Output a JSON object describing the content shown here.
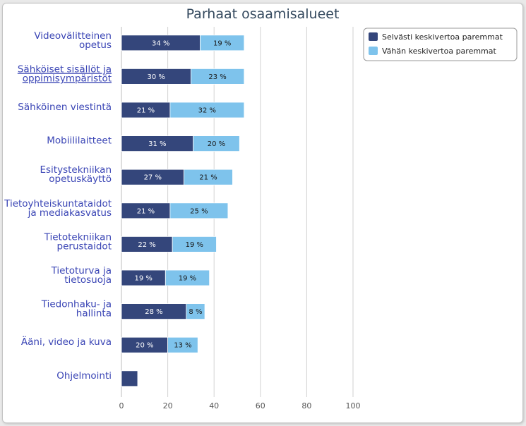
{
  "chart_data": {
    "type": "bar",
    "orientation": "horizontal",
    "stacked": true,
    "title": "Parhaat osaamisalueet",
    "categories": [
      [
        "Videovälitteinen",
        "opetus"
      ],
      [
        "Sähköiset sisällöt ja",
        "oppimisympäristöt"
      ],
      [
        "Sähköinen viestintä"
      ],
      [
        "Mobiililaitteet"
      ],
      [
        "Esitystekniikan",
        "opetuskäyttö"
      ],
      [
        "Tietoyhteiskuntataidot",
        "ja mediakasvatus"
      ],
      [
        "Tietotekniikan",
        "perustaidot"
      ],
      [
        "Tietoturva ja",
        "tietosuoja"
      ],
      [
        "Tiedonhaku- ja",
        "hallinta"
      ],
      [
        "Ääni, video ja kuva"
      ],
      [
        "Ohjelmointi"
      ]
    ],
    "series": [
      {
        "name": "Selvästi keskivertoa paremmat",
        "color": "#34467b",
        "values": [
          34,
          30,
          21,
          31,
          27,
          21,
          22,
          19,
          28,
          20,
          7
        ],
        "labels": [
          "34 %",
          "30 %",
          "21 %",
          "31 %",
          "27 %",
          "21 %",
          "22 %",
          "19 %",
          "28 %",
          "20 %",
          ""
        ]
      },
      {
        "name": "Vähän keskivertoa paremmat",
        "color": "#7ec3ec",
        "values": [
          19,
          23,
          32,
          20,
          21,
          25,
          19,
          19,
          8,
          13,
          0
        ],
        "labels": [
          "19 %",
          "23 %",
          "32 %",
          "20 %",
          "21 %",
          "25 %",
          "19 %",
          "19 %",
          "8 %",
          "13 %",
          ""
        ]
      }
    ],
    "xlim": [
      0,
      100
    ],
    "xticks": [
      0,
      20,
      40,
      60,
      80,
      100
    ],
    "grid": true,
    "legend": "top-right"
  }
}
